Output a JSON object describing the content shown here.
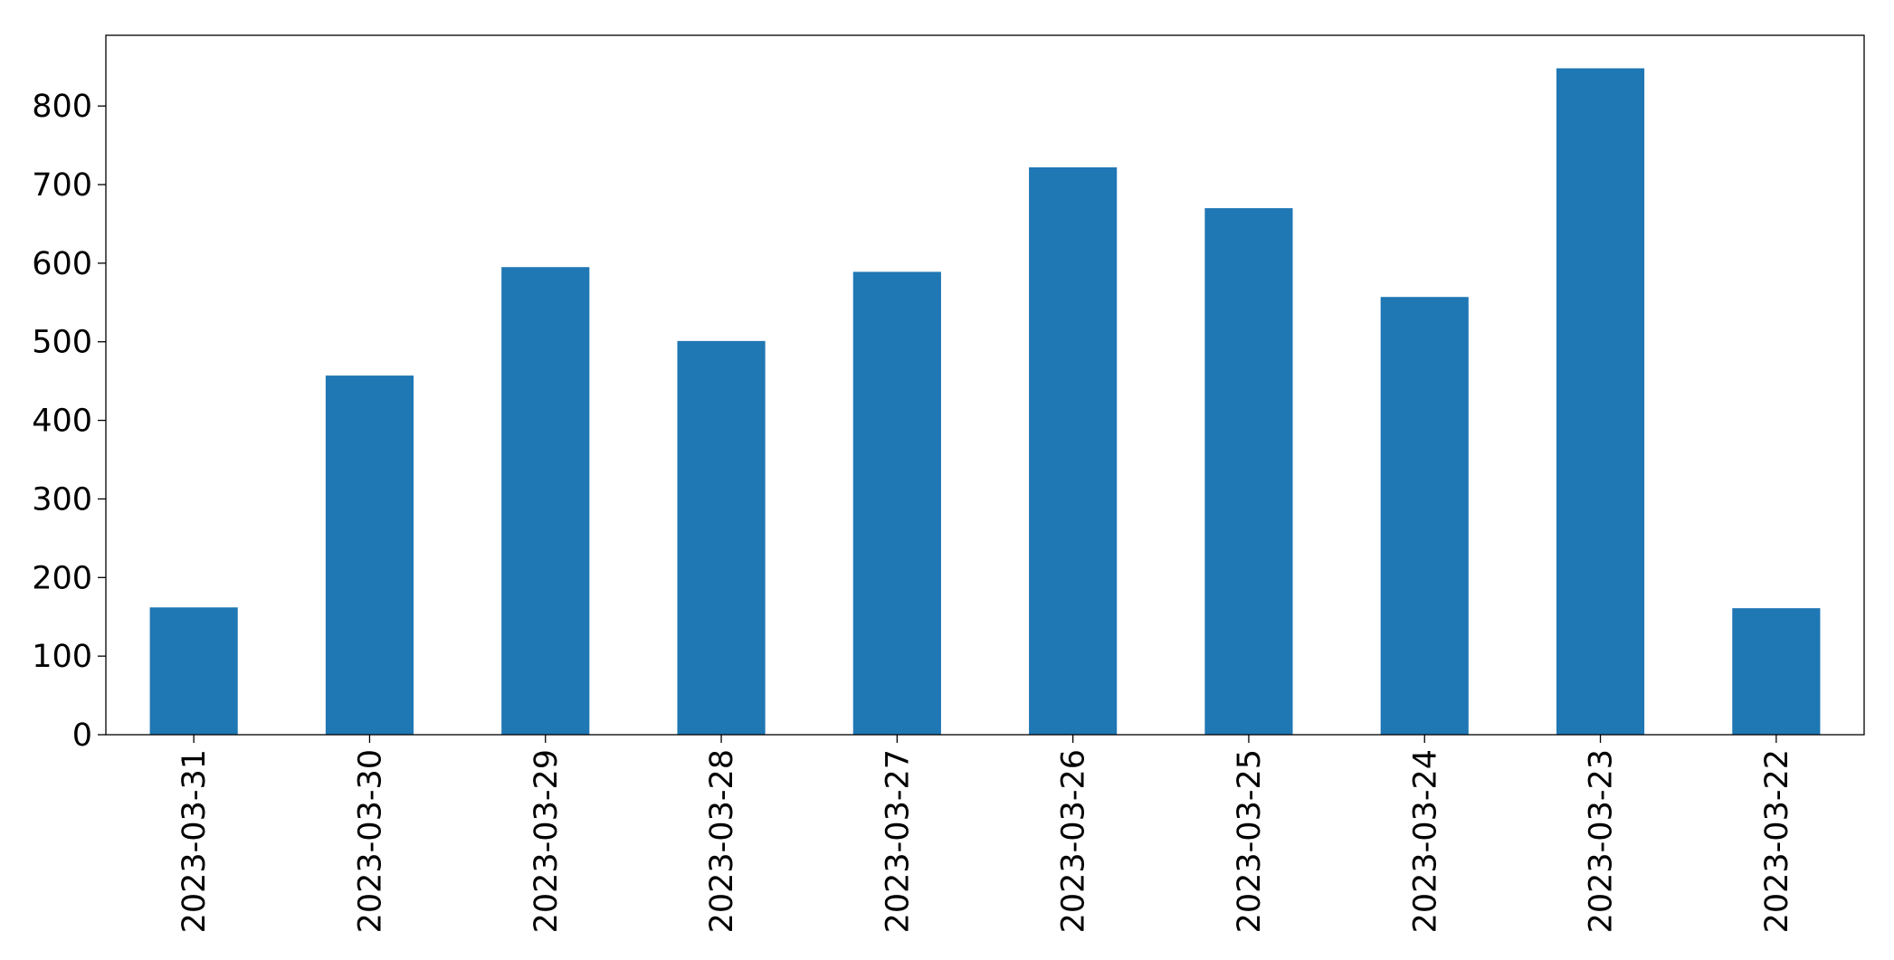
{
  "chart_data": {
    "type": "bar",
    "title": "",
    "xlabel": "",
    "ylabel": "",
    "categories": [
      "2023-03-31",
      "2023-03-30",
      "2023-03-29",
      "2023-03-28",
      "2023-03-27",
      "2023-03-26",
      "2023-03-25",
      "2023-03-24",
      "2023-03-23",
      "2023-03-22"
    ],
    "values": [
      162,
      457,
      595,
      501,
      589,
      722,
      670,
      557,
      848,
      161
    ],
    "ylim": [
      0,
      890
    ],
    "yticks": [
      0,
      100,
      200,
      300,
      400,
      500,
      600,
      700,
      800
    ],
    "ytick_labels": [
      "0",
      "100",
      "200",
      "300",
      "400",
      "500",
      "600",
      "700",
      "800"
    ],
    "bar_color": "#1f77b4",
    "grid": false,
    "legend": "none"
  }
}
